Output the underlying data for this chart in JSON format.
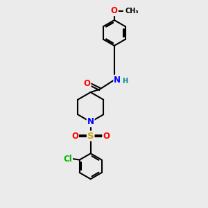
{
  "bg_color": "#ebebeb",
  "bond_color": "#000000",
  "bond_width": 1.5,
  "atom_colors": {
    "O": "#ff0000",
    "N": "#0000ff",
    "S": "#ccaa00",
    "Cl": "#00bb00",
    "C": "#000000",
    "H": "#008888"
  },
  "font_size_atom": 8.5,
  "font_size_small": 7.0,
  "dbo": 0.055
}
